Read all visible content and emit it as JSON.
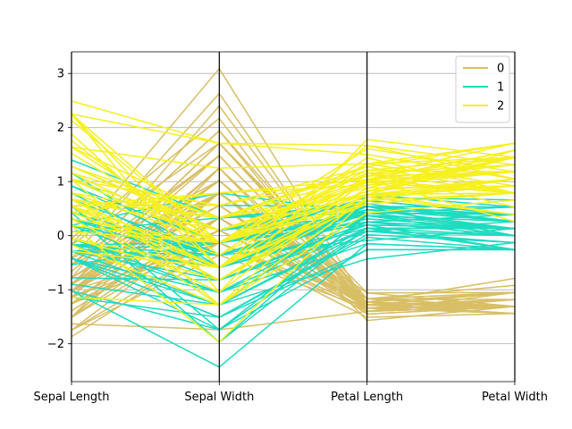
{
  "chart_data": {
    "type": "parallel_coordinates",
    "axes": [
      "Sepal Length",
      "Sepal Width",
      "Petal Length",
      "Petal Width"
    ],
    "ylim": [
      -2.7,
      3.4
    ],
    "yticks": [
      -2,
      -1,
      0,
      1,
      2,
      3
    ],
    "ytick_labels": [
      "−2",
      "−1",
      "0",
      "1",
      "2",
      "3"
    ],
    "grid": true,
    "legend_position": "top-right",
    "series": [
      {
        "name": "0",
        "color": "#d8bf66",
        "lines": [
          [
            -0.9,
            1.02,
            -1.34,
            -1.31
          ],
          [
            -1.14,
            -0.13,
            -1.34,
            -1.31
          ],
          [
            -1.39,
            0.33,
            -1.4,
            -1.31
          ],
          [
            -1.51,
            0.1,
            -1.28,
            -1.31
          ],
          [
            -1.02,
            1.25,
            -1.34,
            -1.31
          ],
          [
            -0.54,
            1.94,
            -1.17,
            -1.05
          ],
          [
            -1.51,
            0.79,
            -1.34,
            -1.18
          ],
          [
            -1.02,
            0.79,
            -1.28,
            -1.31
          ],
          [
            -1.75,
            -0.36,
            -1.34,
            -1.31
          ],
          [
            -1.14,
            0.1,
            -1.28,
            -1.44
          ],
          [
            -0.54,
            1.48,
            -1.28,
            -1.31
          ],
          [
            -1.26,
            0.79,
            -1.23,
            -1.31
          ],
          [
            -1.26,
            -0.13,
            -1.34,
            -1.44
          ],
          [
            -1.87,
            -0.13,
            -1.51,
            -1.44
          ],
          [
            -0.05,
            2.17,
            -1.45,
            -1.31
          ],
          [
            -0.17,
            3.09,
            -1.28,
            -1.05
          ],
          [
            -0.54,
            1.94,
            -1.4,
            -1.05
          ],
          [
            -0.9,
            1.02,
            -1.34,
            -1.18
          ],
          [
            -0.17,
            1.71,
            -1.17,
            -1.18
          ],
          [
            -0.9,
            1.71,
            -1.28,
            -1.18
          ],
          [
            -0.54,
            0.79,
            -1.17,
            -1.31
          ],
          [
            -0.9,
            1.48,
            -1.28,
            -1.05
          ],
          [
            -1.51,
            1.25,
            -1.57,
            -1.31
          ],
          [
            -0.9,
            0.56,
            -1.17,
            -0.92
          ],
          [
            -1.26,
            0.79,
            -1.06,
            -1.31
          ],
          [
            -1.02,
            -0.13,
            -1.23,
            -1.31
          ],
          [
            -1.02,
            0.79,
            -1.23,
            -1.05
          ],
          [
            -0.78,
            1.02,
            -1.28,
            -1.31
          ],
          [
            -0.78,
            0.79,
            -1.34,
            -1.31
          ],
          [
            -1.39,
            0.33,
            -1.23,
            -1.31
          ],
          [
            -1.26,
            0.1,
            -1.23,
            -1.31
          ],
          [
            -0.54,
            0.79,
            -1.28,
            -1.05
          ],
          [
            -0.78,
            2.4,
            -1.28,
            -1.44
          ],
          [
            -0.42,
            2.63,
            -1.34,
            -1.31
          ],
          [
            -1.14,
            0.1,
            -1.28,
            -1.31
          ],
          [
            -1.02,
            0.33,
            -1.45,
            -1.31
          ],
          [
            -0.42,
            1.02,
            -1.4,
            -1.31
          ],
          [
            -1.14,
            1.25,
            -1.34,
            -1.44
          ],
          [
            -1.75,
            -0.13,
            -1.4,
            -1.31
          ],
          [
            -0.9,
            0.79,
            -1.28,
            -1.31
          ],
          [
            -1.02,
            1.02,
            -1.4,
            -1.18
          ],
          [
            -1.63,
            -1.74,
            -1.4,
            -1.18
          ],
          [
            -1.75,
            0.33,
            -1.4,
            -1.31
          ],
          [
            -1.02,
            1.02,
            -1.23,
            -0.79
          ],
          [
            -0.9,
            1.71,
            -1.06,
            -1.05
          ],
          [
            -1.26,
            -0.13,
            -1.34,
            -1.18
          ],
          [
            -0.9,
            1.71,
            -1.23,
            -1.31
          ],
          [
            -1.51,
            0.33,
            -1.34,
            -1.31
          ],
          [
            -0.66,
            1.48,
            -1.28,
            -1.31
          ],
          [
            -1.02,
            0.56,
            -1.34,
            -1.31
          ]
        ]
      },
      {
        "name": "1",
        "color": "#1fdbc0",
        "lines": [
          [
            1.4,
            0.33,
            0.54,
            0.26
          ],
          [
            0.67,
            0.33,
            0.42,
            0.39
          ],
          [
            1.28,
            0.1,
            0.65,
            0.39
          ],
          [
            -0.42,
            -1.74,
            0.14,
            0.13
          ],
          [
            0.79,
            -0.59,
            0.48,
            0.39
          ],
          [
            -0.17,
            -0.59,
            0.42,
            0.13
          ],
          [
            0.55,
            0.56,
            0.54,
            0.53
          ],
          [
            -1.14,
            -1.51,
            -0.26,
            -0.26
          ],
          [
            0.92,
            -0.36,
            0.48,
            0.13
          ],
          [
            -0.78,
            -0.82,
            0.08,
            0.26
          ],
          [
            -1.02,
            -2.43,
            -0.15,
            -0.26
          ],
          [
            0.07,
            -0.13,
            0.25,
            0.39
          ],
          [
            0.19,
            -1.97,
            0.14,
            -0.26
          ],
          [
            0.31,
            -0.36,
            0.54,
            0.26
          ],
          [
            -0.29,
            -0.36,
            -0.09,
            0.13
          ],
          [
            1.04,
            0.1,
            0.37,
            0.26
          ],
          [
            -0.29,
            -0.13,
            0.42,
            0.39
          ],
          [
            -0.05,
            -0.82,
            0.2,
            -0.26
          ],
          [
            0.43,
            -1.97,
            0.42,
            0.39
          ],
          [
            -0.29,
            -1.28,
            0.08,
            -0.13
          ],
          [
            0.07,
            0.33,
            0.59,
            0.79
          ],
          [
            0.31,
            -0.59,
            0.14,
            0.13
          ],
          [
            0.55,
            -1.28,
            0.65,
            0.39
          ],
          [
            0.31,
            -0.59,
            0.54,
            0.0
          ],
          [
            0.67,
            -0.36,
            0.31,
            0.13
          ],
          [
            0.92,
            -0.13,
            0.37,
            0.26
          ],
          [
            1.16,
            -0.59,
            0.59,
            0.26
          ],
          [
            1.04,
            -0.13,
            0.71,
            0.66
          ],
          [
            0.19,
            -0.36,
            0.42,
            0.39
          ],
          [
            -0.17,
            -1.05,
            -0.15,
            -0.26
          ],
          [
            -0.42,
            -1.51,
            0.02,
            -0.13
          ],
          [
            -0.42,
            -1.51,
            -0.03,
            -0.26
          ],
          [
            -0.05,
            -0.82,
            0.08,
            0.0
          ],
          [
            0.19,
            -0.82,
            0.76,
            0.53
          ],
          [
            -0.54,
            -0.13,
            0.42,
            0.39
          ],
          [
            0.19,
            0.79,
            0.42,
            0.53
          ],
          [
            1.04,
            0.1,
            0.54,
            0.39
          ],
          [
            0.55,
            -1.74,
            0.37,
            0.13
          ],
          [
            -0.29,
            -0.13,
            0.2,
            0.13
          ],
          [
            -0.42,
            -1.28,
            0.14,
            0.13
          ],
          [
            -0.42,
            -1.05,
            0.37,
            0.0
          ],
          [
            0.31,
            -0.13,
            0.48,
            0.26
          ],
          [
            -0.05,
            -1.05,
            0.14,
            0.0
          ],
          [
            -1.02,
            -1.74,
            -0.26,
            -0.26
          ],
          [
            -0.29,
            -0.82,
            0.25,
            0.13
          ],
          [
            -0.17,
            -0.13,
            0.25,
            0.0
          ],
          [
            -0.17,
            -0.36,
            0.25,
            0.13
          ],
          [
            0.43,
            -0.36,
            0.31,
            0.13
          ],
          [
            -0.9,
            -1.28,
            -0.43,
            -0.13
          ],
          [
            -0.17,
            -0.59,
            0.2,
            0.13
          ]
        ]
      },
      {
        "name": "2",
        "color": "#f6f020",
        "lines": [
          [
            0.55,
            0.56,
            1.27,
            1.71
          ],
          [
            -0.05,
            -0.82,
            0.76,
            0.92
          ],
          [
            1.52,
            -0.13,
            1.21,
            1.18
          ],
          [
            0.55,
            -0.36,
            1.04,
            0.79
          ],
          [
            0.79,
            -0.13,
            1.16,
            1.31
          ],
          [
            2.13,
            -0.13,
            1.61,
            1.18
          ],
          [
            -1.14,
            -1.28,
            0.42,
            0.66
          ],
          [
            1.76,
            -0.36,
            1.44,
            0.79
          ],
          [
            1.04,
            -1.28,
            1.16,
            0.79
          ],
          [
            1.64,
            1.25,
            1.33,
            1.71
          ],
          [
            0.79,
            0.33,
            0.76,
            1.05
          ],
          [
            0.67,
            -0.82,
            0.88,
            0.92
          ],
          [
            1.16,
            -0.13,
            0.99,
            1.18
          ],
          [
            -0.17,
            -1.28,
            0.71,
            1.05
          ],
          [
            -0.05,
            -0.59,
            0.76,
            1.58
          ],
          [
            0.67,
            0.33,
            0.88,
            1.45
          ],
          [
            0.79,
            -0.13,
            0.99,
            0.79
          ],
          [
            2.25,
            1.71,
            1.67,
            1.31
          ],
          [
            2.25,
            -1.05,
            1.78,
            1.45
          ],
          [
            0.19,
            -1.97,
            0.71,
            0.39
          ],
          [
            1.28,
            0.33,
            1.1,
            1.45
          ],
          [
            -0.29,
            -0.59,
            0.65,
            1.05
          ],
          [
            2.25,
            -0.59,
            1.67,
            1.05
          ],
          [
            0.55,
            -0.82,
            0.65,
            0.79
          ],
          [
            1.04,
            0.56,
            1.1,
            1.18
          ],
          [
            1.64,
            0.33,
            1.27,
            0.79
          ],
          [
            0.43,
            -0.59,
            0.59,
            0.79
          ],
          [
            0.31,
            -0.13,
            0.65,
            0.79
          ],
          [
            0.67,
            -0.59,
            1.04,
            1.18
          ],
          [
            1.64,
            -0.13,
            1.16,
            0.53
          ],
          [
            1.88,
            -0.59,
            1.33,
            0.92
          ],
          [
            2.49,
            1.71,
            1.5,
            1.05
          ],
          [
            0.67,
            -0.59,
            1.04,
            1.31
          ],
          [
            0.55,
            -0.59,
            0.76,
            0.39
          ],
          [
            0.31,
            -1.05,
            1.04,
            0.26
          ],
          [
            2.25,
            -0.13,
            1.33,
            1.45
          ],
          [
            0.55,
            0.79,
            1.04,
            1.58
          ],
          [
            0.67,
            0.1,
            0.99,
            0.79
          ],
          [
            0.19,
            -0.13,
            0.59,
            0.79
          ],
          [
            1.28,
            0.1,
            0.93,
            1.18
          ],
          [
            1.04,
            0.1,
            1.04,
            1.58
          ],
          [
            1.28,
            0.1,
            0.76,
            1.45
          ],
          [
            -0.05,
            -0.82,
            0.76,
            0.92
          ],
          [
            1.16,
            0.33,
            1.21,
            1.45
          ],
          [
            1.04,
            0.56,
            1.1,
            1.71
          ],
          [
            1.04,
            -0.13,
            0.82,
            1.45
          ],
          [
            0.55,
            -1.28,
            0.71,
            0.92
          ],
          [
            0.79,
            -0.13,
            0.82,
            1.05
          ],
          [
            0.43,
            0.79,
            0.93,
            1.45
          ],
          [
            0.07,
            -0.13,
            0.76,
            0.79
          ]
        ]
      }
    ]
  }
}
